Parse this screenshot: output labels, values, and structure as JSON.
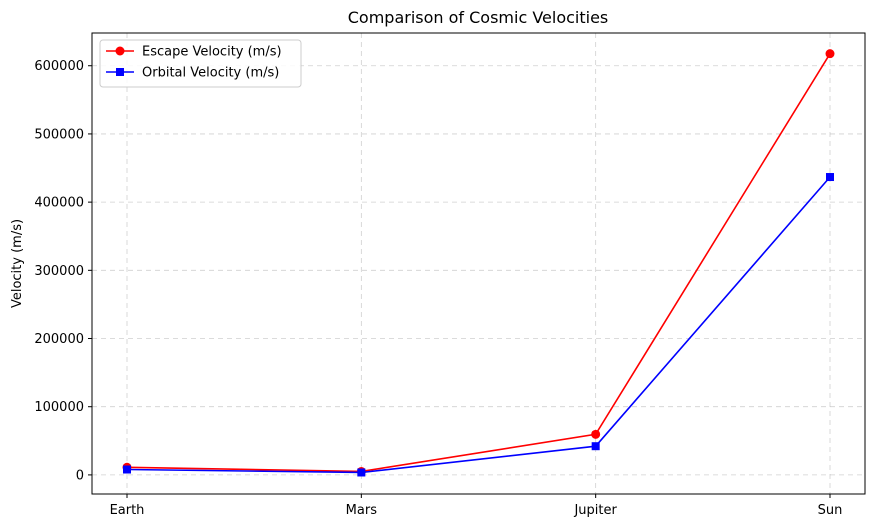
{
  "chart_data": {
    "type": "line",
    "title": "Comparison of Cosmic Velocities",
    "xlabel": "",
    "ylabel": "Velocity (m/s)",
    "categories": [
      "Earth",
      "Mars",
      "Jupiter",
      "Sun"
    ],
    "ylim": [
      -28000,
      648000
    ],
    "yticks": [
      0,
      100000,
      200000,
      300000,
      400000,
      500000,
      600000
    ],
    "ytick_labels": [
      "0",
      "100000",
      "200000",
      "300000",
      "400000",
      "500000",
      "600000"
    ],
    "grid": true,
    "legend_position": "top-left",
    "series": [
      {
        "name": "Escape Velocity (m/s)",
        "color": "#ff0000",
        "marker": "circle",
        "values": [
          11186,
          5027,
          59500,
          617700
        ]
      },
      {
        "name": "Orbital Velocity (m/s)",
        "color": "#0000ff",
        "marker": "square",
        "values": [
          7910,
          3550,
          42100,
          436800
        ]
      }
    ]
  }
}
